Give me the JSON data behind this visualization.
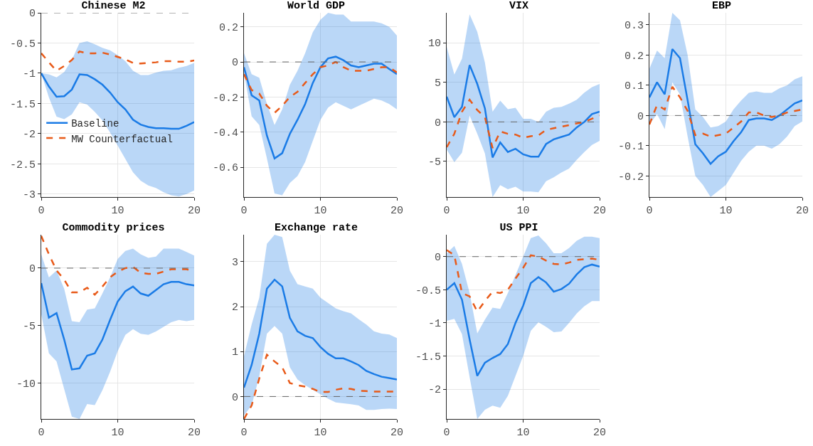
{
  "chart_data": [
    {
      "type": "line",
      "title": "Chinese M2",
      "x": [
        0,
        1,
        2,
        3,
        4,
        5,
        6,
        7,
        8,
        9,
        10,
        11,
        12,
        13,
        14,
        15,
        16,
        17,
        18,
        19,
        20
      ],
      "xlim": [
        0,
        20
      ],
      "xticks": [
        0,
        10,
        20
      ],
      "ylim": [
        -3.05,
        0
      ],
      "yticks": [
        -3,
        -2.5,
        -2,
        -1.5,
        -1,
        -0.5,
        0
      ],
      "grid": true,
      "legend": "left",
      "ref_lines": [
        {
          "axis": "y",
          "value": 0,
          "color": "#666666",
          "line_style": "dashed"
        }
      ],
      "series": [
        {
          "name": "Baseline",
          "color": "#1a7be6",
          "line_style": "solid",
          "values": [
            -1.0,
            -1.22,
            -1.39,
            -1.38,
            -1.27,
            -1.02,
            -1.03,
            -1.1,
            -1.19,
            -1.32,
            -1.48,
            -1.6,
            -1.77,
            -1.85,
            -1.89,
            -1.91,
            -1.91,
            -1.92,
            -1.92,
            -1.87,
            -1.81
          ],
          "upper": [
            -1.0,
            -1.02,
            -1.07,
            -0.98,
            -0.78,
            -0.5,
            -0.47,
            -0.52,
            -0.58,
            -0.62,
            -0.7,
            -0.8,
            -0.96,
            -1.03,
            -1.03,
            -0.99,
            -0.96,
            -0.95,
            -0.91,
            -0.88,
            -0.83
          ],
          "lower": [
            -1.0,
            -1.4,
            -1.72,
            -1.76,
            -1.68,
            -1.48,
            -1.52,
            -1.64,
            -1.78,
            -1.98,
            -2.2,
            -2.42,
            -2.64,
            -2.78,
            -2.86,
            -2.9,
            -2.97,
            -3.02,
            -3.04,
            -3.0,
            -2.94
          ]
        },
        {
          "name": "MW Counterfactual",
          "color": "#e85a19",
          "line_style": "dashed",
          "values": [
            -0.67,
            -0.82,
            -0.96,
            -0.88,
            -0.78,
            -0.64,
            -0.67,
            -0.67,
            -0.66,
            -0.69,
            -0.73,
            -0.77,
            -0.83,
            -0.84,
            -0.83,
            -0.82,
            -0.8,
            -0.8,
            -0.81,
            -0.81,
            -0.79
          ]
        }
      ]
    },
    {
      "type": "line",
      "title": "World GDP",
      "x": [
        0,
        1,
        2,
        3,
        4,
        5,
        6,
        7,
        8,
        9,
        10,
        11,
        12,
        13,
        14,
        15,
        16,
        17,
        18,
        19,
        20
      ],
      "xlim": [
        0,
        20
      ],
      "xticks": [
        0,
        10,
        20
      ],
      "ylim": [
        -0.77,
        0.28
      ],
      "yticks": [
        -0.6,
        -0.4,
        -0.2,
        0,
        0.2
      ],
      "grid": true,
      "ref_lines": [
        {
          "axis": "y",
          "value": 0,
          "color": "#666666",
          "line_style": "dashed"
        }
      ],
      "series": [
        {
          "color": "#1a7be6",
          "line_style": "solid",
          "values": [
            -0.03,
            -0.19,
            -0.22,
            -0.42,
            -0.55,
            -0.52,
            -0.41,
            -0.33,
            -0.24,
            -0.12,
            -0.03,
            0.02,
            0.03,
            0.01,
            -0.02,
            -0.03,
            -0.02,
            -0.01,
            -0.01,
            -0.04,
            -0.07
          ],
          "upper": [
            0.05,
            -0.07,
            -0.09,
            -0.24,
            -0.36,
            -0.27,
            -0.13,
            -0.05,
            0.05,
            0.17,
            0.24,
            0.28,
            0.27,
            0.27,
            0.23,
            0.23,
            0.23,
            0.23,
            0.22,
            0.2,
            0.15
          ],
          "lower": [
            -0.06,
            -0.31,
            -0.36,
            -0.55,
            -0.75,
            -0.76,
            -0.69,
            -0.65,
            -0.57,
            -0.45,
            -0.33,
            -0.26,
            -0.23,
            -0.25,
            -0.27,
            -0.25,
            -0.23,
            -0.21,
            -0.22,
            -0.24,
            -0.27
          ]
        },
        {
          "color": "#e85a19",
          "line_style": "dashed",
          "values": [
            -0.07,
            -0.16,
            -0.18,
            -0.25,
            -0.29,
            -0.25,
            -0.2,
            -0.17,
            -0.12,
            -0.07,
            -0.03,
            -0.02,
            0.0,
            -0.03,
            -0.05,
            -0.05,
            -0.05,
            -0.04,
            -0.03,
            -0.03,
            -0.06
          ]
        }
      ]
    },
    {
      "type": "line",
      "title": "VIX",
      "x": [
        0,
        1,
        2,
        3,
        4,
        5,
        6,
        7,
        8,
        9,
        10,
        11,
        12,
        13,
        14,
        15,
        16,
        17,
        18,
        19,
        20
      ],
      "xlim": [
        0,
        20
      ],
      "xticks": [
        0,
        10,
        20
      ],
      "ylim": [
        -9.5,
        13.8
      ],
      "yticks": [
        -5,
        0,
        5,
        10
      ],
      "grid": true,
      "ref_lines": [
        {
          "axis": "y",
          "value": 0,
          "color": "#666666",
          "line_style": "dashed"
        }
      ],
      "series": [
        {
          "color": "#1a7be6",
          "line_style": "solid",
          "values": [
            3.2,
            0.6,
            1.9,
            7.2,
            4.8,
            1.7,
            -4.5,
            -2.6,
            -3.8,
            -3.4,
            -4.1,
            -4.4,
            -4.4,
            -2.8,
            -2.2,
            -1.9,
            -1.6,
            -0.7,
            0,
            1.0,
            1.3
          ],
          "upper": [
            9.5,
            6.0,
            8.0,
            13.6,
            11.4,
            7.5,
            1.3,
            2.7,
            1.6,
            1.8,
            0.4,
            0.4,
            0.0,
            1.3,
            1.8,
            1.9,
            2.3,
            2.8,
            3.7,
            4.4,
            4.8
          ],
          "lower": [
            -3.5,
            -5.1,
            -3.9,
            0.8,
            -1.5,
            -4.0,
            -9.5,
            -8.0,
            -8.5,
            -8.2,
            -8.8,
            -8.8,
            -8.9,
            -7.5,
            -7.0,
            -6.4,
            -5.9,
            -4.8,
            -3.8,
            -2.9,
            -2.4
          ]
        },
        {
          "color": "#e85a19",
          "line_style": "dashed",
          "values": [
            -3.2,
            -1.5,
            1.3,
            2.8,
            1.5,
            0.6,
            -3.3,
            -1.2,
            -1.5,
            -1.6,
            -2.0,
            -1.8,
            -1.7,
            -1.0,
            -0.8,
            -0.6,
            -0.4,
            -0.2,
            0,
            0.4,
            0.8
          ]
        }
      ]
    },
    {
      "type": "line",
      "title": "EBP",
      "x": [
        0,
        1,
        2,
        3,
        4,
        5,
        6,
        7,
        8,
        9,
        10,
        11,
        12,
        13,
        14,
        15,
        16,
        17,
        18,
        19,
        20
      ],
      "xlim": [
        0,
        20
      ],
      "xticks": [
        0,
        10,
        20
      ],
      "ylim": [
        -0.27,
        0.34
      ],
      "yticks": [
        -0.2,
        -0.1,
        0,
        0.1,
        0.2,
        0.3
      ],
      "grid": true,
      "ref_lines": [
        {
          "axis": "y",
          "value": 0,
          "color": "#666666",
          "line_style": "dashed"
        }
      ],
      "series": [
        {
          "color": "#1a7be6",
          "line_style": "solid",
          "values": [
            0.06,
            0.11,
            0.07,
            0.22,
            0.19,
            0.05,
            -0.095,
            -0.125,
            -0.16,
            -0.135,
            -0.12,
            -0.085,
            -0.055,
            -0.015,
            -0.01,
            -0.01,
            -0.015,
            0,
            0.02,
            0.04,
            0.05
          ],
          "upper": [
            0.155,
            0.215,
            0.19,
            0.34,
            0.315,
            0.2,
            0.02,
            -0.005,
            -0.04,
            -0.035,
            -0.02,
            0.02,
            0.05,
            0.075,
            0.08,
            0.075,
            0.075,
            0.09,
            0.1,
            0.12,
            0.13
          ],
          "lower": [
            -0.03,
            0.005,
            -0.045,
            0.11,
            0.07,
            -0.07,
            -0.2,
            -0.23,
            -0.27,
            -0.25,
            -0.23,
            -0.19,
            -0.15,
            -0.12,
            -0.1,
            -0.1,
            -0.11,
            -0.095,
            -0.07,
            -0.035,
            -0.02
          ]
        },
        {
          "color": "#e85a19",
          "line_style": "dashed",
          "values": [
            -0.03,
            0.035,
            0.02,
            0.095,
            0.06,
            0.015,
            -0.065,
            -0.06,
            -0.07,
            -0.065,
            -0.06,
            -0.04,
            -0.02,
            0.01,
            0.01,
            0.0,
            -0.005,
            0,
            0.01,
            0.015,
            0.02
          ]
        }
      ]
    },
    {
      "type": "line",
      "title": "Commodity prices",
      "x": [
        0,
        1,
        2,
        3,
        4,
        5,
        6,
        7,
        8,
        9,
        10,
        11,
        12,
        13,
        14,
        15,
        16,
        17,
        18,
        19,
        20
      ],
      "xlim": [
        0,
        20
      ],
      "xticks": [
        0,
        10,
        20
      ],
      "ylim": [
        -13.1,
        2.9
      ],
      "yticks": [
        -10,
        -5,
        0
      ],
      "grid": true,
      "ref_lines": [
        {
          "axis": "y",
          "value": 0,
          "color": "#666666",
          "line_style": "dashed"
        }
      ],
      "series": [
        {
          "color": "#1a7be6",
          "line_style": "solid",
          "values": [
            -1.3,
            -4.3,
            -3.9,
            -6.2,
            -8.8,
            -8.7,
            -7.6,
            -7.4,
            -6.2,
            -4.5,
            -2.9,
            -2.0,
            -1.6,
            -2.2,
            -2.4,
            -1.9,
            -1.4,
            -1.2,
            -1.2,
            -1.4,
            -1.5
          ],
          "upper": [
            1.2,
            -0.8,
            -0.2,
            -1.8,
            -4.6,
            -4.7,
            -3.6,
            -3.5,
            -2.2,
            -0.8,
            0.8,
            1.5,
            1.7,
            1.2,
            0.9,
            1.0,
            1.7,
            1.7,
            1.7,
            1.4,
            1.1
          ],
          "lower": [
            -4.0,
            -7.4,
            -8.1,
            -10.5,
            -12.9,
            -13.1,
            -11.8,
            -11.9,
            -10.6,
            -9.0,
            -7.2,
            -5.8,
            -5.3,
            -5.7,
            -5.8,
            -5.5,
            -5.1,
            -4.7,
            -4.5,
            -4.6,
            -4.5
          ]
        },
        {
          "color": "#e85a19",
          "line_style": "dashed",
          "values": [
            2.8,
            1.2,
            -0.2,
            -1.0,
            -2.1,
            -2.1,
            -1.7,
            -2.3,
            -1.6,
            -0.8,
            -0.3,
            0,
            0.1,
            -0.4,
            -0.5,
            -0.5,
            -0.3,
            -0.1,
            -0.1,
            -0.1,
            -0.3
          ]
        }
      ]
    },
    {
      "type": "line",
      "title": "Exchange rate",
      "x": [
        0,
        1,
        2,
        3,
        4,
        5,
        6,
        7,
        8,
        9,
        10,
        11,
        12,
        13,
        14,
        15,
        16,
        17,
        18,
        19,
        20
      ],
      "xlim": [
        0,
        20
      ],
      "xticks": [
        0,
        10,
        20
      ],
      "ylim": [
        -0.5,
        3.6
      ],
      "yticks": [
        0,
        1,
        2,
        3
      ],
      "grid": true,
      "ref_lines": [
        {
          "axis": "y",
          "value": 0,
          "color": "#666666",
          "line_style": "dashed"
        }
      ],
      "series": [
        {
          "color": "#1a7be6",
          "line_style": "solid",
          "values": [
            0.2,
            0.7,
            1.4,
            2.4,
            2.6,
            2.45,
            1.75,
            1.45,
            1.35,
            1.3,
            1.1,
            0.95,
            0.85,
            0.85,
            0.78,
            0.7,
            0.57,
            0.5,
            0.44,
            0.41,
            0.38
          ],
          "upper": [
            0.9,
            1.6,
            2.2,
            3.4,
            3.6,
            3.55,
            2.8,
            2.5,
            2.45,
            2.4,
            2.2,
            2.08,
            1.96,
            1.9,
            1.85,
            1.72,
            1.6,
            1.45,
            1.4,
            1.38,
            1.3
          ],
          "lower": [
            -0.42,
            -0.2,
            0.45,
            1.4,
            1.57,
            1.4,
            0.65,
            0.38,
            0.25,
            0.15,
            0.05,
            -0.05,
            -0.13,
            -0.15,
            -0.17,
            -0.2,
            -0.3,
            -0.3,
            -0.28,
            -0.27,
            -0.28
          ]
        },
        {
          "color": "#e85a19",
          "line_style": "dashed",
          "values": [
            -0.5,
            -0.2,
            0.4,
            0.93,
            0.78,
            0.65,
            0.3,
            0.25,
            0.22,
            0.17,
            0.1,
            0.1,
            0.15,
            0.18,
            0.17,
            0.13,
            0.12,
            0.11,
            0.11,
            0.11,
            0.11
          ]
        }
      ]
    },
    {
      "type": "line",
      "title": "US PPI",
      "x": [
        0,
        1,
        2,
        3,
        4,
        5,
        6,
        7,
        8,
        9,
        10,
        11,
        12,
        13,
        14,
        15,
        16,
        17,
        18,
        19,
        20
      ],
      "xlim": [
        0,
        20
      ],
      "xticks": [
        0,
        10,
        20
      ],
      "ylim": [
        -2.45,
        0.33
      ],
      "yticks": [
        -2,
        -1.5,
        -1,
        -0.5,
        0
      ],
      "grid": true,
      "ref_lines": [
        {
          "axis": "y",
          "value": 0,
          "color": "#666666",
          "line_style": "dashed"
        }
      ],
      "series": [
        {
          "color": "#1a7be6",
          "line_style": "solid",
          "values": [
            -0.5,
            -0.4,
            -0.65,
            -1.25,
            -1.8,
            -1.6,
            -1.53,
            -1.47,
            -1.32,
            -1.0,
            -0.74,
            -0.4,
            -0.31,
            -0.39,
            -0.53,
            -0.49,
            -0.41,
            -0.27,
            -0.16,
            -0.12,
            -0.15
          ],
          "upper": [
            0.05,
            0.16,
            -0.11,
            -0.55,
            -1.16,
            -0.95,
            -0.77,
            -0.79,
            -0.55,
            -0.28,
            0.0,
            0.28,
            0.32,
            0.2,
            0.05,
            0.05,
            0.13,
            0.24,
            0.3,
            0.3,
            0.28
          ],
          "lower": [
            -0.97,
            -0.94,
            -1.17,
            -1.82,
            -2.45,
            -2.31,
            -2.25,
            -2.28,
            -2.1,
            -1.8,
            -1.5,
            -1.12,
            -0.99,
            -1.06,
            -1.14,
            -1.13,
            -1.0,
            -0.86,
            -0.75,
            -0.67,
            -0.67
          ]
        },
        {
          "color": "#e85a19",
          "line_style": "dashed",
          "values": [
            0.1,
            0.02,
            -0.55,
            -0.6,
            -0.83,
            -0.67,
            -0.53,
            -0.55,
            -0.5,
            -0.33,
            -0.17,
            0.02,
            0.0,
            -0.06,
            -0.11,
            -0.12,
            -0.09,
            -0.05,
            -0.04,
            -0.03,
            -0.05
          ]
        }
      ]
    }
  ]
}
